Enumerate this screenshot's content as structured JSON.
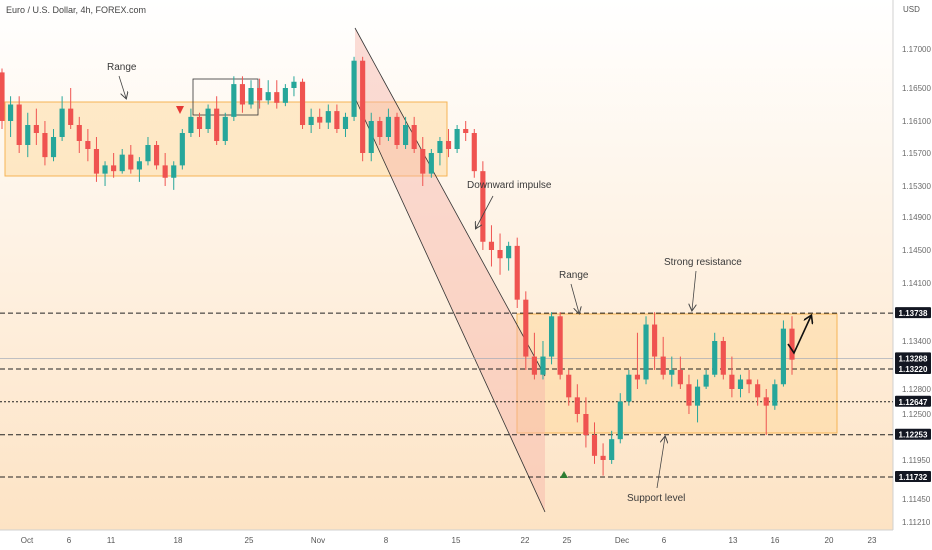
{
  "header": {
    "title": "Euro / U.S. Dollar, 4h, FOREX.com",
    "currency": "USD"
  },
  "chart_data": {
    "type": "candlestick",
    "y_axis": {
      "ticks": [
        "1.17000",
        "1.16500",
        "1.16100",
        "1.15700",
        "1.15300",
        "1.14900",
        "1.14500",
        "1.14100",
        "1.13400",
        "1.12800",
        "1.12500",
        "1.11950",
        "1.11450",
        "1.11210"
      ],
      "range": [
        1.1105,
        1.1755
      ]
    },
    "x_axis": {
      "ticks": [
        "Oct",
        "6",
        "11",
        "18",
        "25",
        "Nov",
        "8",
        "15",
        "22",
        "25",
        "Dec",
        "6",
        "13",
        "16",
        "20",
        "23"
      ]
    },
    "price_labels": [
      {
        "value": "1.13738",
        "style": "dark"
      },
      {
        "value": "1.13288",
        "time": "02:37:30",
        "style": "dark"
      },
      {
        "value": "1.13220",
        "style": "dark"
      },
      {
        "value": "1.12647",
        "style": "dark"
      },
      {
        "value": "1.12253",
        "style": "dark"
      },
      {
        "value": "1.11732",
        "style": "dark"
      }
    ],
    "annotations": [
      {
        "text": "Range",
        "near": "top-left box"
      },
      {
        "text": "Downward impulse",
        "near": "falling channel"
      },
      {
        "text": "Range",
        "near": "right box"
      },
      {
        "text": "Strong resistance",
        "near": "upper dashed line"
      },
      {
        "text": "Support level",
        "near": "lower box edge"
      }
    ],
    "levels": [
      {
        "price": 1.13738,
        "style": "dashed"
      },
      {
        "price": 1.1322,
        "style": "dashed"
      },
      {
        "price": 1.12647,
        "style": "dotted"
      },
      {
        "price": 1.12253,
        "style": "dashed"
      },
      {
        "price": 1.11732,
        "style": "dashed"
      }
    ],
    "current_price": 1.13288,
    "colors": {
      "up": "#26a69a",
      "down": "#ef5350",
      "box": "#ffd592",
      "channel": "#f7b3a8"
    },
    "series": [
      {
        "values": [
          [
            1.167,
            1.1675,
            1.16,
            1.161
          ],
          [
            1.161,
            1.164,
            1.159,
            1.163
          ],
          [
            1.163,
            1.164,
            1.157,
            1.158
          ],
          [
            1.158,
            1.162,
            1.1565,
            1.1605
          ],
          [
            1.1605,
            1.1625,
            1.158,
            1.1595
          ],
          [
            1.1595,
            1.161,
            1.1555,
            1.1565
          ],
          [
            1.1565,
            1.16,
            1.156,
            1.159
          ],
          [
            1.159,
            1.164,
            1.1585,
            1.1625
          ],
          [
            1.1625,
            1.165,
            1.16,
            1.1605
          ],
          [
            1.1605,
            1.1615,
            1.157,
            1.1585
          ],
          [
            1.1585,
            1.16,
            1.156,
            1.1575
          ],
          [
            1.1575,
            1.159,
            1.1535,
            1.1545
          ],
          [
            1.1545,
            1.156,
            1.153,
            1.1555
          ],
          [
            1.1555,
            1.157,
            1.154,
            1.1548
          ],
          [
            1.1548,
            1.1575,
            1.1545,
            1.1568
          ],
          [
            1.1568,
            1.158,
            1.1545,
            1.155
          ],
          [
            1.155,
            1.1565,
            1.1535,
            1.156
          ],
          [
            1.156,
            1.159,
            1.1555,
            1.158
          ],
          [
            1.158,
            1.1585,
            1.155,
            1.1555
          ],
          [
            1.1555,
            1.157,
            1.153,
            1.154
          ],
          [
            1.154,
            1.156,
            1.1525,
            1.1555
          ],
          [
            1.1555,
            1.16,
            1.155,
            1.1595
          ],
          [
            1.1595,
            1.1625,
            1.159,
            1.1615
          ],
          [
            1.1615,
            1.162,
            1.159,
            1.16
          ],
          [
            1.16,
            1.163,
            1.1595,
            1.1625
          ],
          [
            1.1625,
            1.164,
            1.158,
            1.1585
          ],
          [
            1.1585,
            1.162,
            1.158,
            1.1615
          ],
          [
            1.1615,
            1.1665,
            1.161,
            1.1655
          ],
          [
            1.1655,
            1.1665,
            1.162,
            1.163
          ],
          [
            1.163,
            1.166,
            1.1625,
            1.165
          ],
          [
            1.165,
            1.1662,
            1.1625,
            1.1635
          ],
          [
            1.1635,
            1.166,
            1.163,
            1.1645
          ],
          [
            1.1645,
            1.166,
            1.1625,
            1.1632
          ],
          [
            1.1632,
            1.1655,
            1.1628,
            1.165
          ],
          [
            1.165,
            1.1665,
            1.164,
            1.1658
          ],
          [
            1.1658,
            1.1662,
            1.16,
            1.1605
          ],
          [
            1.1605,
            1.1625,
            1.1595,
            1.1615
          ],
          [
            1.1615,
            1.1625,
            1.16,
            1.1608
          ],
          [
            1.1608,
            1.163,
            1.16,
            1.1622
          ],
          [
            1.1622,
            1.163,
            1.1595,
            1.16
          ],
          [
            1.16,
            1.162,
            1.159,
            1.1615
          ],
          [
            1.1615,
            1.169,
            1.161,
            1.1685
          ],
          [
            1.1685,
            1.169,
            1.156,
            1.157
          ],
          [
            1.157,
            1.162,
            1.156,
            1.161
          ],
          [
            1.161,
            1.1615,
            1.158,
            1.159
          ],
          [
            1.159,
            1.1625,
            1.1585,
            1.1615
          ],
          [
            1.1615,
            1.162,
            1.1575,
            1.158
          ],
          [
            1.158,
            1.1615,
            1.1575,
            1.1605
          ],
          [
            1.1605,
            1.1615,
            1.157,
            1.1575
          ],
          [
            1.1575,
            1.159,
            1.153,
            1.1545
          ],
          [
            1.1545,
            1.1575,
            1.154,
            1.157
          ],
          [
            1.157,
            1.159,
            1.1555,
            1.1585
          ],
          [
            1.1585,
            1.16,
            1.1565,
            1.1575
          ],
          [
            1.1575,
            1.1605,
            1.157,
            1.16
          ],
          [
            1.16,
            1.161,
            1.1585,
            1.1595
          ],
          [
            1.1595,
            1.16,
            1.154,
            1.1548
          ],
          [
            1.1548,
            1.156,
            1.145,
            1.146
          ],
          [
            1.146,
            1.148,
            1.143,
            1.145
          ],
          [
            1.145,
            1.147,
            1.142,
            1.144
          ],
          [
            1.144,
            1.146,
            1.1425,
            1.1455
          ],
          [
            1.1455,
            1.1465,
            1.138,
            1.139
          ],
          [
            1.139,
            1.14,
            1.132,
            1.133
          ],
          [
            1.133,
            1.135,
            1.13,
            1.131
          ],
          [
            1.131,
            1.134,
            1.13,
            1.133
          ],
          [
            1.133,
            1.1375,
            1.1325,
            1.137
          ],
          [
            1.137,
            1.1375,
            1.13,
            1.131
          ],
          [
            1.131,
            1.132,
            1.126,
            1.127
          ],
          [
            1.127,
            1.129,
            1.124,
            1.125
          ],
          [
            1.125,
            1.127,
            1.121,
            1.1225
          ],
          [
            1.1225,
            1.124,
            1.119,
            1.12
          ],
          [
            1.12,
            1.1215,
            1.1175,
            1.1195
          ],
          [
            1.1195,
            1.123,
            1.119,
            1.122
          ],
          [
            1.122,
            1.1275,
            1.1215,
            1.1265
          ],
          [
            1.1265,
            1.132,
            1.126,
            1.131
          ],
          [
            1.131,
            1.135,
            1.128,
            1.13
          ],
          [
            1.13,
            1.137,
            1.129,
            1.136
          ],
          [
            1.136,
            1.1375,
            1.132,
            1.133
          ],
          [
            1.133,
            1.1345,
            1.13,
            1.131
          ],
          [
            1.131,
            1.133,
            1.1285,
            1.132
          ],
          [
            1.132,
            1.133,
            1.128,
            1.129
          ],
          [
            1.129,
            1.131,
            1.125,
            1.126
          ],
          [
            1.126,
            1.13,
            1.124,
            1.1285
          ],
          [
            1.1285,
            1.132,
            1.128,
            1.131
          ],
          [
            1.131,
            1.135,
            1.1305,
            1.134
          ],
          [
            1.134,
            1.1345,
            1.13,
            1.131
          ],
          [
            1.131,
            1.133,
            1.127,
            1.128
          ],
          [
            1.128,
            1.131,
            1.127,
            1.13
          ],
          [
            1.13,
            1.132,
            1.1275,
            1.129
          ],
          [
            1.129,
            1.13,
            1.126,
            1.127
          ],
          [
            1.127,
            1.128,
            1.1225,
            1.126
          ],
          [
            1.126,
            1.13,
            1.1255,
            1.129
          ],
          [
            1.129,
            1.1365,
            1.1285,
            1.1355
          ],
          [
            1.1355,
            1.137,
            1.131,
            1.1328
          ]
        ]
      }
    ]
  }
}
